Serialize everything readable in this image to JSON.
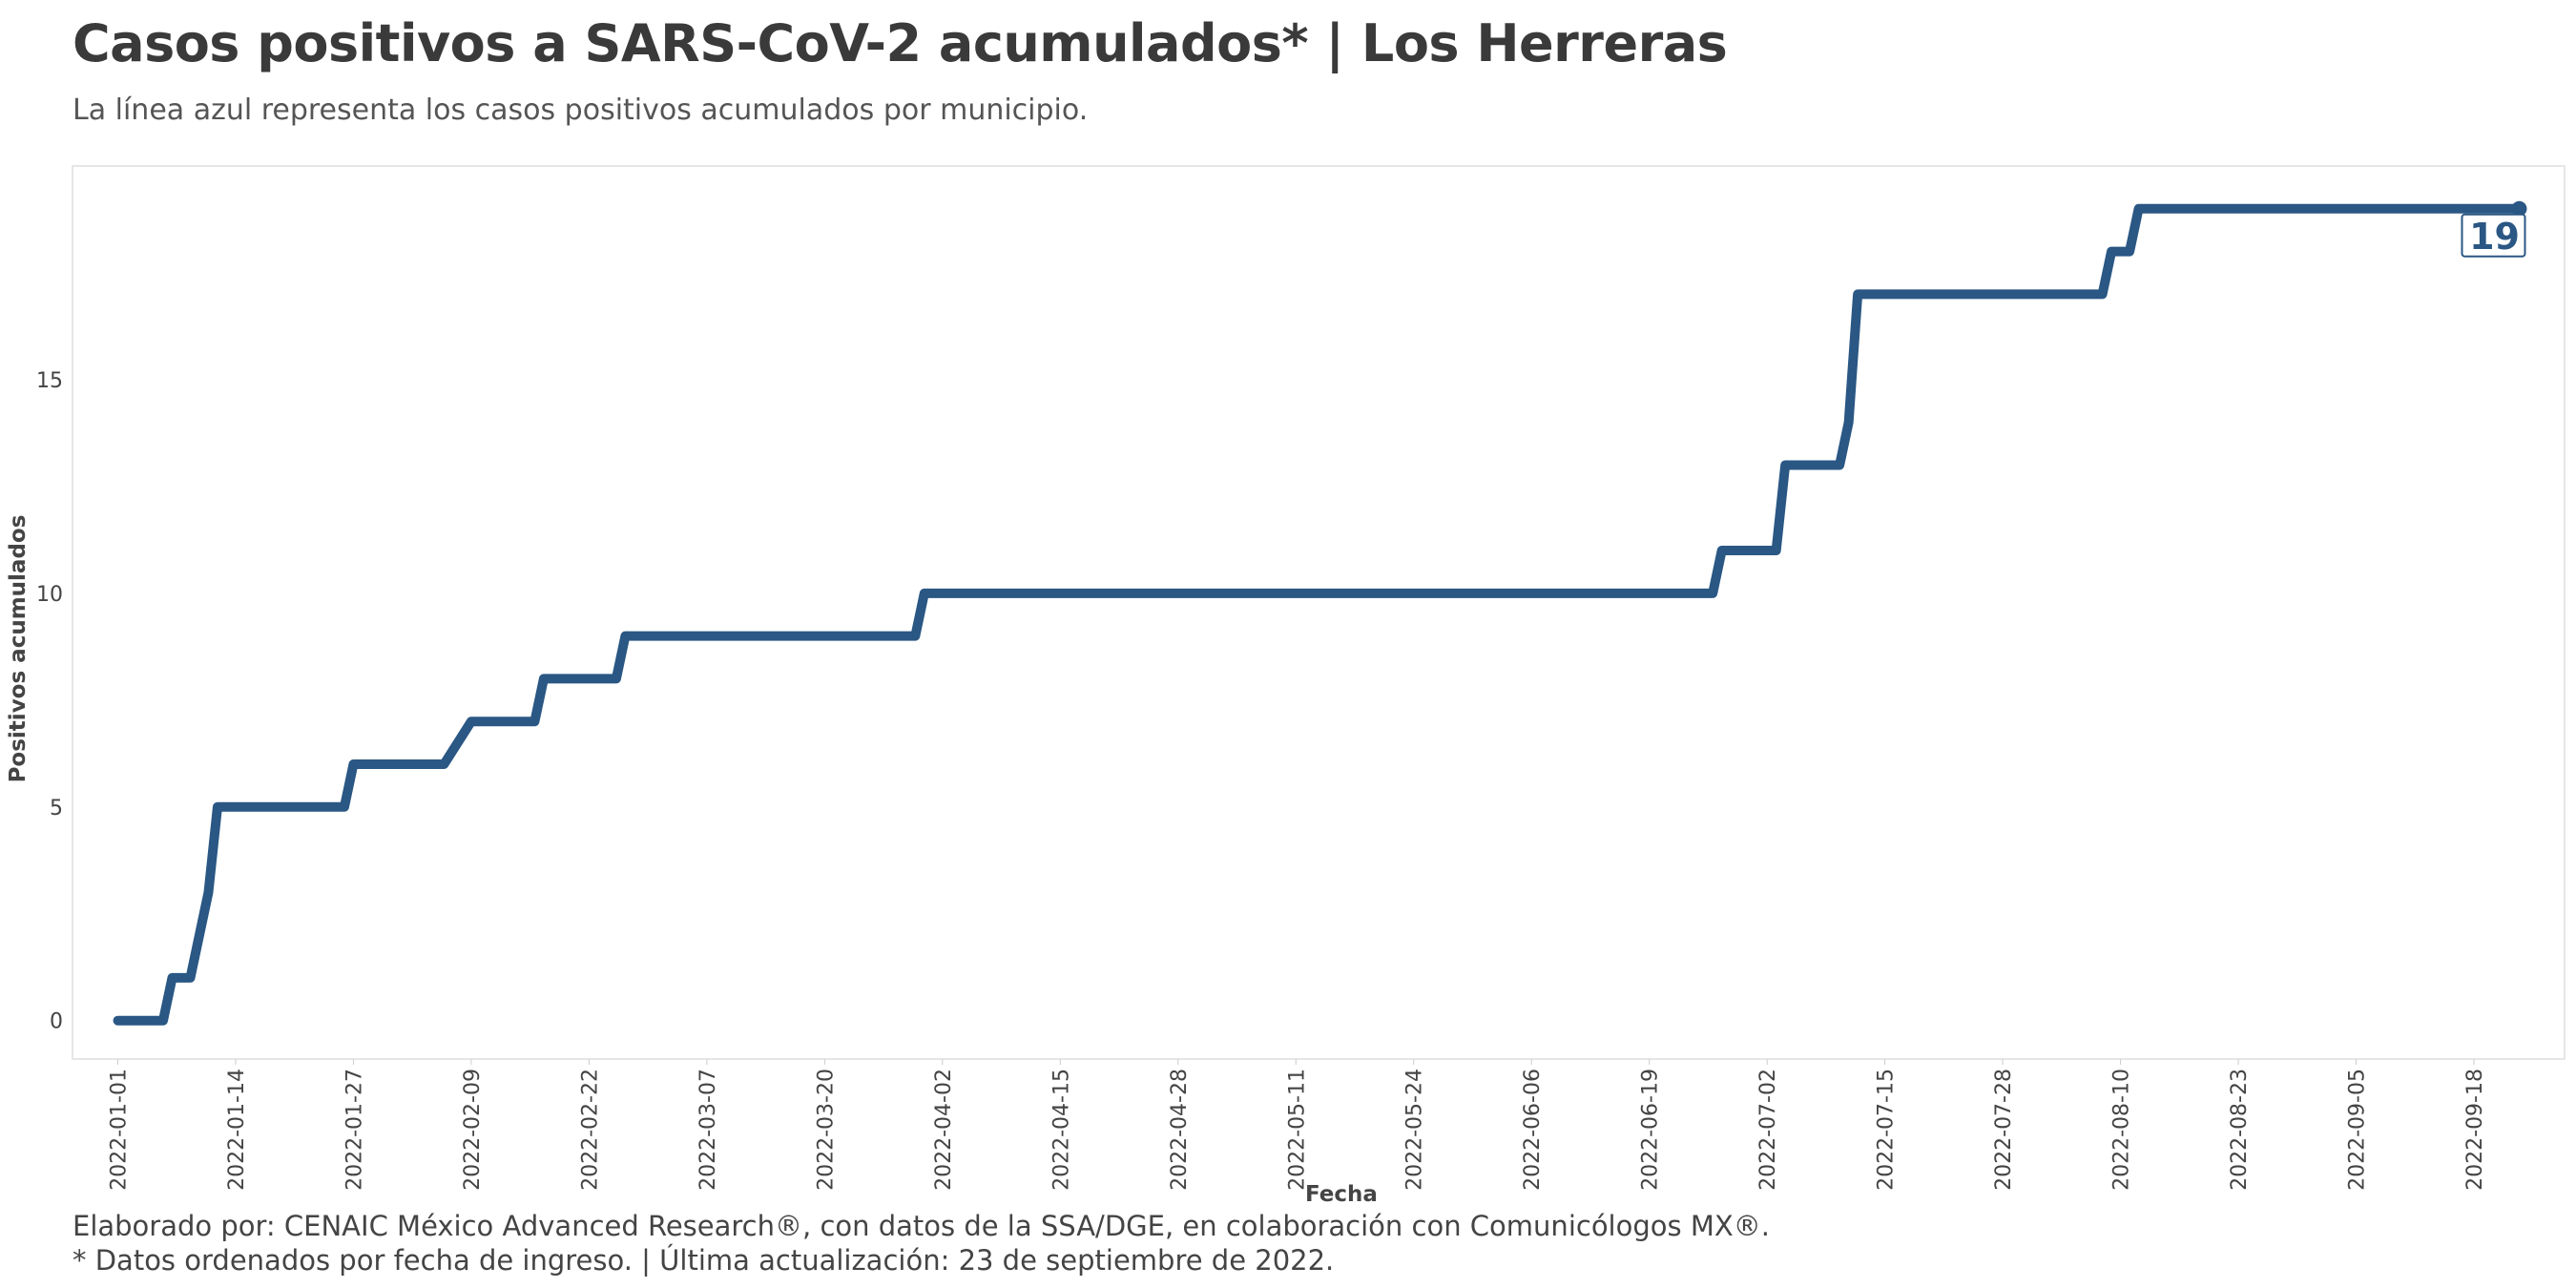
{
  "title": "Casos positivos a SARS-CoV-2 acumulados* | Los Herreras",
  "subtitle": "La línea azul representa los casos positivos acumulados por municipio.",
  "caption_line1": "Elaborado por: CENAIC México Advanced Research®, con datos de la SSA/DGE, en colaboración con Comunicólogos MX®.",
  "caption_line2": "* Datos ordenados por fecha de ingreso. | Última actualización: 23 de septiembre de 2022.",
  "colors": {
    "line": "#2a5784",
    "panel_border": "#e6e6e6"
  },
  "chart_data": {
    "type": "line",
    "xlabel": "Fecha",
    "ylabel": "Positivos acumulados",
    "xlim": [
      "2021-12-27",
      "2022-09-28"
    ],
    "ylim": [
      -0.9,
      20
    ],
    "grid": false,
    "y_ticks": [
      0,
      5,
      10,
      15
    ],
    "x_ticks": [
      "2022-01-01",
      "2022-01-14",
      "2022-01-27",
      "2022-02-09",
      "2022-02-22",
      "2022-03-07",
      "2022-03-20",
      "2022-04-02",
      "2022-04-15",
      "2022-04-28",
      "2022-05-11",
      "2022-05-24",
      "2022-06-06",
      "2022-06-19",
      "2022-07-02",
      "2022-07-15",
      "2022-07-28",
      "2022-08-10",
      "2022-08-23",
      "2022-09-05",
      "2022-09-18"
    ],
    "end_label": "19",
    "series": [
      {
        "x": [
          "2022-01-01",
          "2022-01-06",
          "2022-01-07",
          "2022-01-08",
          "2022-01-09",
          "2022-01-11",
          "2022-01-12",
          "2022-01-16",
          "2022-01-20",
          "2022-01-26",
          "2022-01-27",
          "2022-02-06",
          "2022-02-09",
          "2022-02-10",
          "2022-02-16",
          "2022-02-17",
          "2022-02-25",
          "2022-02-26",
          "2022-03-30",
          "2022-03-31",
          "2022-05-11",
          "2022-06-26",
          "2022-06-27",
          "2022-07-03",
          "2022-07-04",
          "2022-07-10",
          "2022-07-11",
          "2022-07-12",
          "2022-08-08",
          "2022-08-09",
          "2022-08-11",
          "2022-08-12",
          "2022-09-05",
          "2022-09-23"
        ],
        "y": [
          0,
          0,
          1,
          1,
          1,
          3,
          5,
          5,
          5,
          5,
          6,
          6,
          7,
          7,
          7,
          8,
          8,
          9,
          9,
          10,
          10,
          10,
          11,
          11,
          13,
          13,
          14,
          17,
          17,
          18,
          18,
          19,
          19,
          19
        ]
      }
    ]
  }
}
